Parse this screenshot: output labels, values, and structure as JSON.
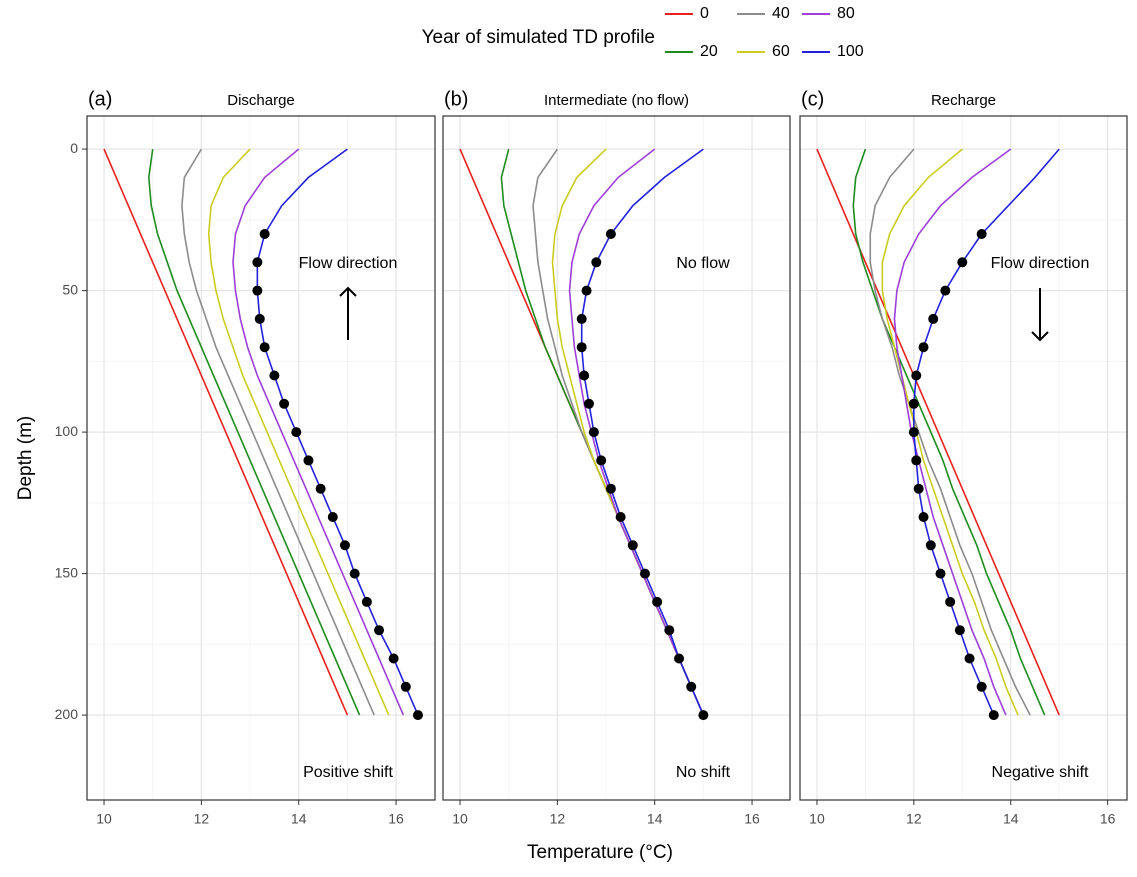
{
  "legend_title": "Year of simulated TD profile",
  "x_label": "Temperature (°C)",
  "y_label": "Depth (m)",
  "chart_data": [
    {
      "type": "line",
      "panel_label": "(a)",
      "title": "Discharge",
      "annotations": [
        "Flow direction",
        "Positive shift"
      ],
      "flow_direction": "up",
      "y": [
        0,
        10,
        20,
        30,
        40,
        50,
        60,
        70,
        80,
        90,
        100,
        110,
        120,
        130,
        140,
        150,
        160,
        170,
        180,
        190,
        200
      ],
      "xlim": [
        9.65,
        16.8
      ],
      "xticks": [
        10,
        12,
        14,
        16
      ],
      "ylim": [
        -11.7,
        230
      ],
      "yticks": [
        0,
        50,
        100,
        150,
        200
      ],
      "y_reversed": true,
      "grid": true,
      "series": [
        {
          "name": "0",
          "color": "#e8211d",
          "values": [
            10,
            10.25,
            10.5,
            10.75,
            11,
            11.25,
            11.5,
            11.75,
            12,
            12.25,
            12.5,
            12.75,
            13,
            13.25,
            13.5,
            13.75,
            14,
            14.25,
            14.5,
            14.75,
            15
          ]
        },
        {
          "name": "20",
          "color": "#1e8c1e",
          "values": [
            11,
            10.92,
            10.97,
            11.1,
            11.3,
            11.5,
            11.75,
            12,
            12.25,
            12.5,
            12.75,
            13,
            13.25,
            13.5,
            13.75,
            14,
            14.25,
            14.5,
            14.75,
            15,
            15.25
          ]
        },
        {
          "name": "40",
          "color": "#8c8c8c",
          "values": [
            12,
            11.65,
            11.6,
            11.65,
            11.75,
            11.9,
            12.1,
            12.3,
            12.55,
            12.8,
            13.05,
            13.3,
            13.55,
            13.8,
            14.05,
            14.3,
            14.55,
            14.8,
            15.05,
            15.3,
            15.55
          ]
        },
        {
          "name": "60",
          "color": "#cccc1f",
          "values": [
            13,
            12.45,
            12.2,
            12.15,
            12.2,
            12.3,
            12.45,
            12.65,
            12.85,
            13.1,
            13.35,
            13.6,
            13.85,
            14.1,
            14.35,
            14.6,
            14.85,
            15.1,
            15.35,
            15.6,
            15.85
          ]
        },
        {
          "name": "80",
          "color": "#9d3fd8",
          "values": [
            14,
            13.3,
            12.9,
            12.7,
            12.65,
            12.7,
            12.8,
            12.95,
            13.15,
            13.4,
            13.65,
            13.9,
            14.15,
            14.4,
            14.65,
            14.9,
            15.15,
            15.4,
            15.65,
            15.9,
            16.15
          ]
        },
        {
          "name": "100",
          "color": "#2222dd",
          "values": [
            15,
            14.2,
            13.65,
            13.3,
            13.15,
            13.15,
            13.2,
            13.3,
            13.5,
            13.7,
            13.95,
            14.2,
            14.45,
            14.7,
            14.95,
            15.15,
            15.4,
            15.65,
            15.95,
            16.2,
            16.45
          ],
          "marker_depths": [
            30,
            40,
            50,
            60,
            70,
            80,
            90,
            100,
            110,
            120,
            130,
            140,
            150,
            160,
            170,
            180,
            190,
            200
          ]
        }
      ]
    },
    {
      "type": "line",
      "panel_label": "(b)",
      "title": "Intermediate (no flow)",
      "annotations": [
        "No flow",
        "No shift"
      ],
      "flow_direction": null,
      "y": [
        0,
        10,
        20,
        30,
        40,
        50,
        60,
        70,
        80,
        90,
        100,
        110,
        120,
        130,
        140,
        150,
        160,
        170,
        180,
        190,
        200
      ],
      "xlim": [
        9.65,
        16.78
      ],
      "xticks": [
        10,
        12,
        14,
        16
      ],
      "ylim": [
        -11.7,
        230
      ],
      "yticks": [
        0,
        50,
        100,
        150,
        200
      ],
      "y_reversed": true,
      "grid": true,
      "series": [
        {
          "name": "0",
          "color": "#e8211d",
          "values": [
            10,
            10.25,
            10.5,
            10.75,
            11,
            11.25,
            11.5,
            11.75,
            12,
            12.25,
            12.5,
            12.75,
            13,
            13.25,
            13.5,
            13.75,
            14,
            14.25,
            14.5,
            14.75,
            15
          ]
        },
        {
          "name": "20",
          "color": "#1e8c1e",
          "values": [
            11,
            10.85,
            10.9,
            11.05,
            11.2,
            11.35,
            11.55,
            11.75,
            12,
            12.25,
            12.5,
            12.75,
            13,
            13.25,
            13.5,
            13.75,
            14,
            14.25,
            14.5,
            14.75,
            15
          ]
        },
        {
          "name": "40",
          "color": "#8c8c8c",
          "values": [
            12,
            11.6,
            11.5,
            11.55,
            11.6,
            11.7,
            11.8,
            11.95,
            12.1,
            12.3,
            12.5,
            12.75,
            13,
            13.25,
            13.5,
            13.75,
            14,
            14.25,
            14.5,
            14.75,
            15
          ]
        },
        {
          "name": "60",
          "color": "#cccc1f",
          "values": [
            13,
            12.4,
            12.1,
            11.95,
            11.9,
            11.95,
            12,
            12.1,
            12.25,
            12.4,
            12.55,
            12.75,
            13,
            13.25,
            13.5,
            13.75,
            14,
            14.25,
            14.5,
            14.75,
            15
          ]
        },
        {
          "name": "80",
          "color": "#9d3fd8",
          "values": [
            14,
            13.25,
            12.75,
            12.45,
            12.3,
            12.25,
            12.3,
            12.35,
            12.45,
            12.55,
            12.7,
            12.85,
            13.05,
            13.25,
            13.5,
            13.75,
            14,
            14.25,
            14.5,
            14.75,
            15
          ]
        },
        {
          "name": "100",
          "color": "#2222dd",
          "values": [
            15,
            14.2,
            13.55,
            13.1,
            12.8,
            12.6,
            12.5,
            12.5,
            12.55,
            12.65,
            12.75,
            12.9,
            13.1,
            13.3,
            13.55,
            13.8,
            14.05,
            14.3,
            14.5,
            14.75,
            15
          ],
          "marker_depths": [
            30,
            40,
            50,
            60,
            70,
            80,
            90,
            100,
            110,
            120,
            130,
            140,
            150,
            160,
            170,
            180,
            190,
            200
          ]
        }
      ]
    },
    {
      "type": "line",
      "panel_label": "(c)",
      "title": "Recharge",
      "annotations": [
        "Flow direction",
        "Negative shift"
      ],
      "flow_direction": "down",
      "y": [
        0,
        10,
        20,
        30,
        40,
        50,
        60,
        70,
        80,
        90,
        100,
        110,
        120,
        130,
        140,
        150,
        160,
        170,
        180,
        190,
        200
      ],
      "xlim": [
        9.65,
        16.4
      ],
      "xticks": [
        10,
        12,
        14,
        16
      ],
      "ylim": [
        -11.7,
        230
      ],
      "yticks": [
        0,
        50,
        100,
        150,
        200
      ],
      "y_reversed": true,
      "grid": true,
      "series": [
        {
          "name": "0",
          "color": "#e8211d",
          "values": [
            10,
            10.25,
            10.5,
            10.75,
            11,
            11.25,
            11.5,
            11.75,
            12,
            12.25,
            12.5,
            12.75,
            13,
            13.25,
            13.5,
            13.75,
            14,
            14.25,
            14.5,
            14.75,
            15
          ]
        },
        {
          "name": "20",
          "color": "#1e8c1e",
          "values": [
            11,
            10.8,
            10.75,
            10.8,
            10.95,
            11.15,
            11.35,
            11.6,
            11.85,
            12.1,
            12.35,
            12.6,
            12.8,
            13.05,
            13.3,
            13.5,
            13.75,
            14,
            14.2,
            14.45,
            14.7
          ]
        },
        {
          "name": "40",
          "color": "#8c8c8c",
          "values": [
            12,
            11.5,
            11.2,
            11.1,
            11.1,
            11.2,
            11.35,
            11.55,
            11.7,
            11.9,
            12.1,
            12.3,
            12.55,
            12.75,
            12.95,
            13.2,
            13.4,
            13.6,
            13.85,
            14.1,
            14.4
          ]
        },
        {
          "name": "60",
          "color": "#cccc1f",
          "values": [
            13,
            12.3,
            11.8,
            11.5,
            11.35,
            11.35,
            11.45,
            11.6,
            11.75,
            11.9,
            12.05,
            12.2,
            12.4,
            12.6,
            12.8,
            13,
            13.25,
            13.45,
            13.7,
            13.9,
            14.15
          ]
        },
        {
          "name": "80",
          "color": "#9d3fd8",
          "values": [
            14,
            13.2,
            12.55,
            12.1,
            11.8,
            11.65,
            11.6,
            11.65,
            11.75,
            11.85,
            11.95,
            12.1,
            12.25,
            12.4,
            12.6,
            12.8,
            13,
            13.2,
            13.45,
            13.65,
            13.9
          ]
        },
        {
          "name": "100",
          "color": "#2222dd",
          "values": [
            15,
            14.5,
            13.95,
            13.4,
            13,
            12.65,
            12.4,
            12.2,
            12.05,
            12,
            12,
            12.05,
            12.1,
            12.2,
            12.35,
            12.55,
            12.75,
            12.95,
            13.15,
            13.4,
            13.65
          ],
          "marker_depths": [
            30,
            40,
            50,
            60,
            70,
            80,
            90,
            100,
            110,
            120,
            130,
            140,
            150,
            160,
            170,
            180,
            190,
            200
          ]
        }
      ]
    }
  ]
}
